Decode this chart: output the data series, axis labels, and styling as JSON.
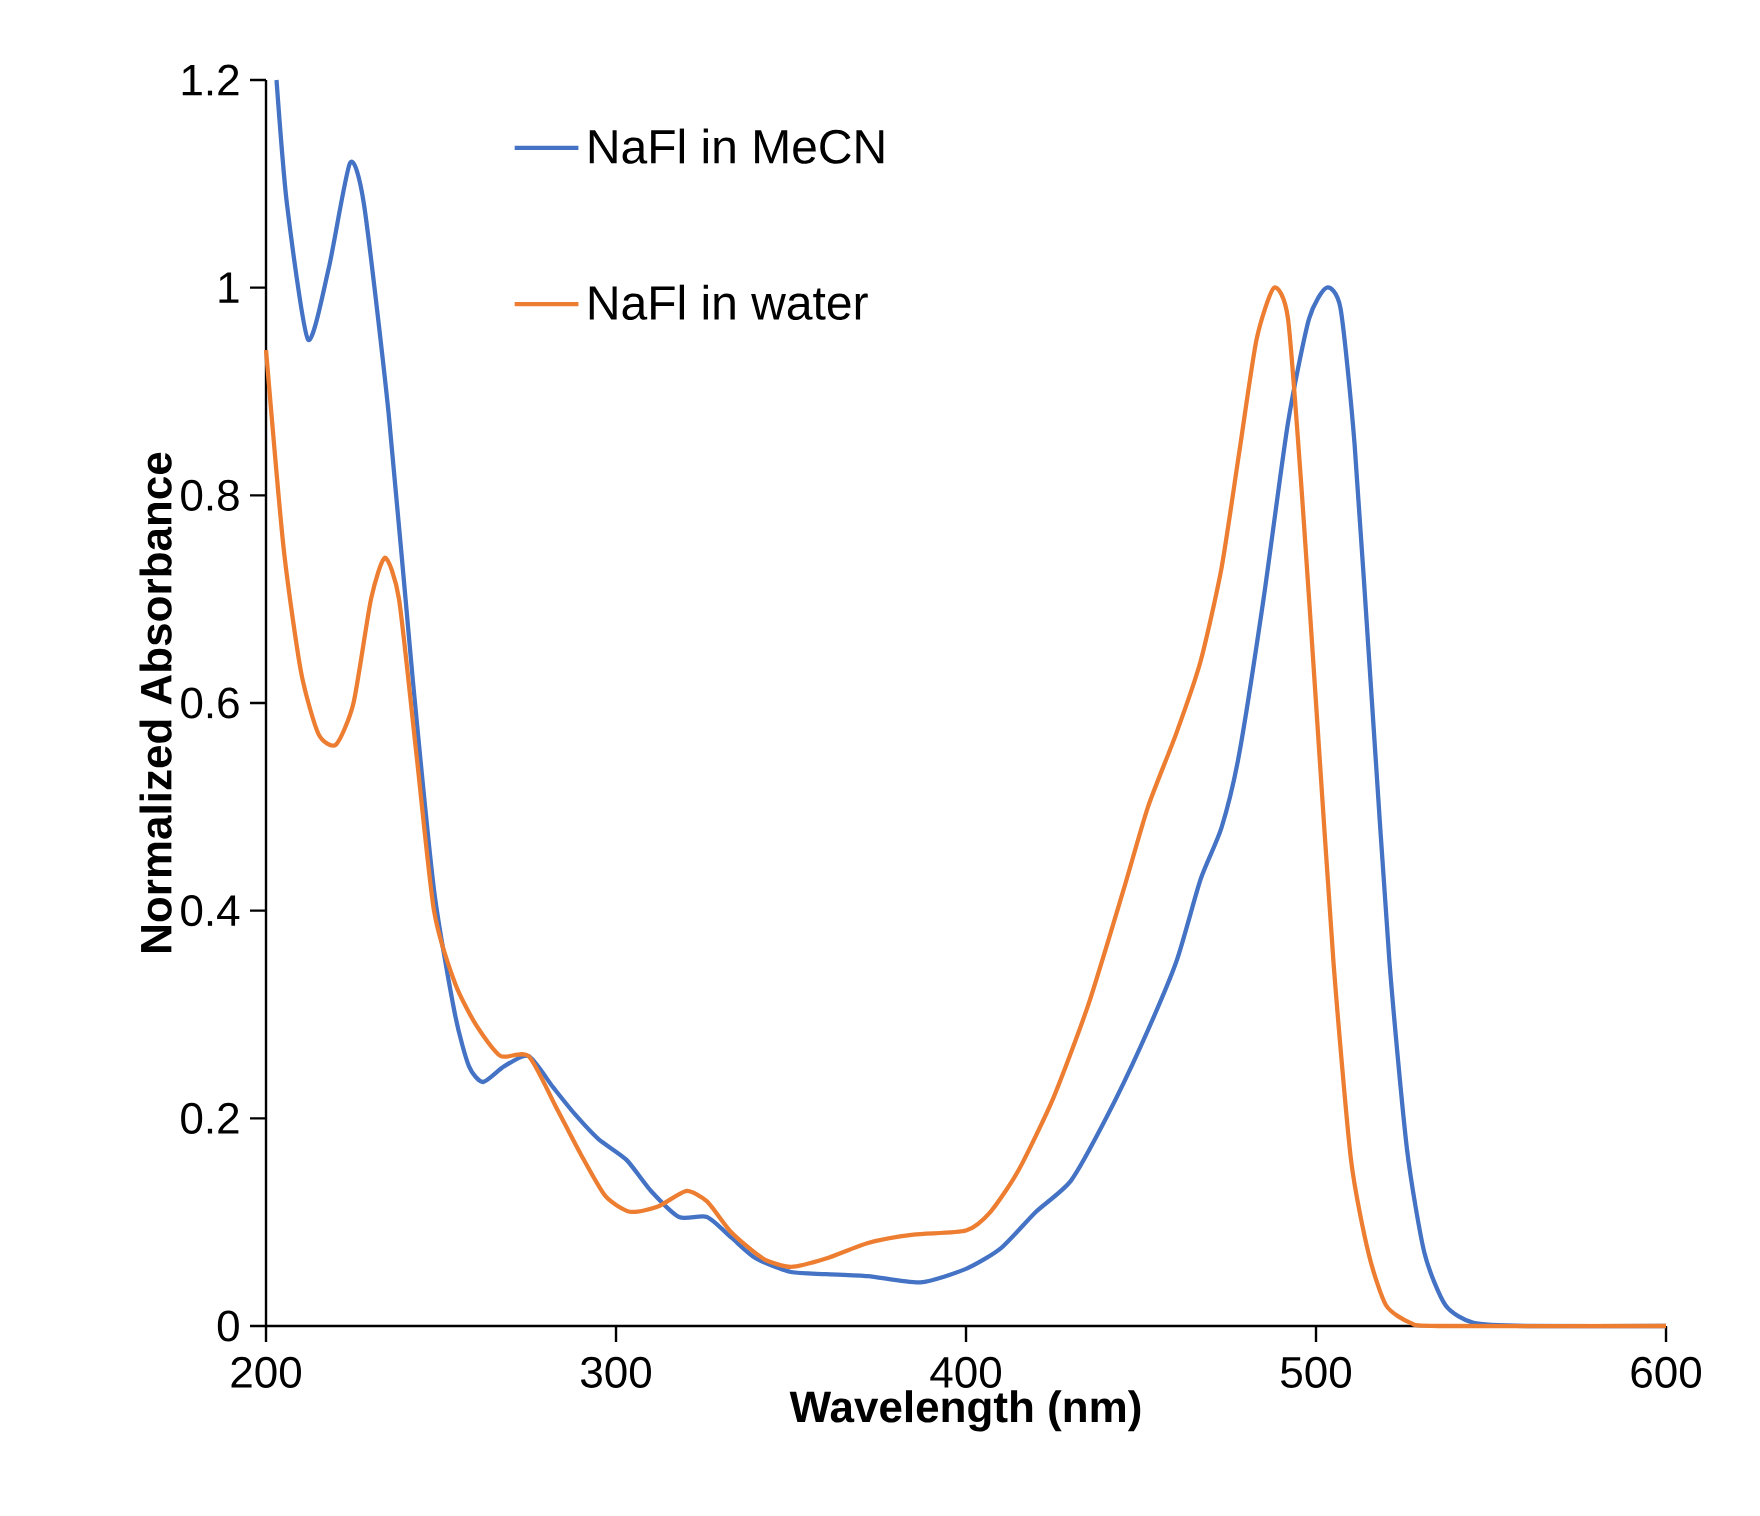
{
  "chart_data": {
    "type": "line",
    "xlabel": "Wavelength (nm)",
    "ylabel": "Normalized Absorbance",
    "xlim": [
      200,
      600
    ],
    "ylim": [
      0,
      1.2
    ],
    "xticks": [
      200,
      300,
      400,
      500,
      600
    ],
    "yticks": [
      0,
      0.2,
      0.4,
      0.6,
      0.8,
      1,
      1.2
    ],
    "grid": false,
    "legend": "top left",
    "marker": "none",
    "line_style": "solid",
    "series": [
      {
        "name": "NaFl in MeCN",
        "color": "#4472c4",
        "x": [
          203,
          206,
          212,
          218,
          224,
          228,
          235,
          242,
          248,
          254,
          258,
          262,
          268,
          275,
          282,
          288,
          295,
          303,
          310,
          318,
          326,
          333,
          340,
          350,
          360,
          372,
          387,
          400,
          410,
          420,
          430,
          440,
          450,
          460,
          467,
          473,
          478,
          485,
          492,
          498,
          503,
          507,
          511,
          516,
          521,
          526,
          531,
          537,
          545,
          560,
          600
        ],
        "values": [
          1.2,
          1.08,
          0.95,
          1.02,
          1.12,
          1.08,
          0.88,
          0.62,
          0.42,
          0.3,
          0.25,
          0.235,
          0.25,
          0.26,
          0.23,
          0.205,
          0.18,
          0.16,
          0.13,
          0.105,
          0.105,
          0.085,
          0.065,
          0.052,
          0.05,
          0.048,
          0.042,
          0.055,
          0.075,
          0.11,
          0.14,
          0.2,
          0.27,
          0.35,
          0.43,
          0.48,
          0.55,
          0.7,
          0.87,
          0.97,
          1.0,
          0.98,
          0.85,
          0.6,
          0.35,
          0.17,
          0.07,
          0.02,
          0.003,
          0,
          0
        ]
      },
      {
        "name": "NaFl in water",
        "color": "#ed7d31",
        "x": [
          200,
          205,
          210,
          215,
          220,
          225,
          230,
          234,
          238,
          243,
          248,
          254,
          260,
          267,
          275,
          283,
          290,
          297,
          304,
          312,
          320,
          326,
          333,
          342,
          350,
          360,
          372,
          385,
          400,
          407,
          415,
          425,
          435,
          445,
          452,
          460,
          467,
          473,
          478,
          483,
          488,
          492,
          496,
          500,
          505,
          510,
          515,
          520,
          527,
          535,
          600
        ],
        "values": [
          0.94,
          0.75,
          0.63,
          0.57,
          0.56,
          0.6,
          0.7,
          0.74,
          0.7,
          0.55,
          0.4,
          0.33,
          0.29,
          0.26,
          0.26,
          0.21,
          0.165,
          0.125,
          0.11,
          0.115,
          0.13,
          0.12,
          0.09,
          0.065,
          0.057,
          0.065,
          0.08,
          0.088,
          0.092,
          0.11,
          0.15,
          0.22,
          0.31,
          0.42,
          0.5,
          0.57,
          0.64,
          0.73,
          0.84,
          0.95,
          1.0,
          0.97,
          0.8,
          0.6,
          0.35,
          0.16,
          0.07,
          0.02,
          0.003,
          0,
          0
        ]
      }
    ]
  }
}
